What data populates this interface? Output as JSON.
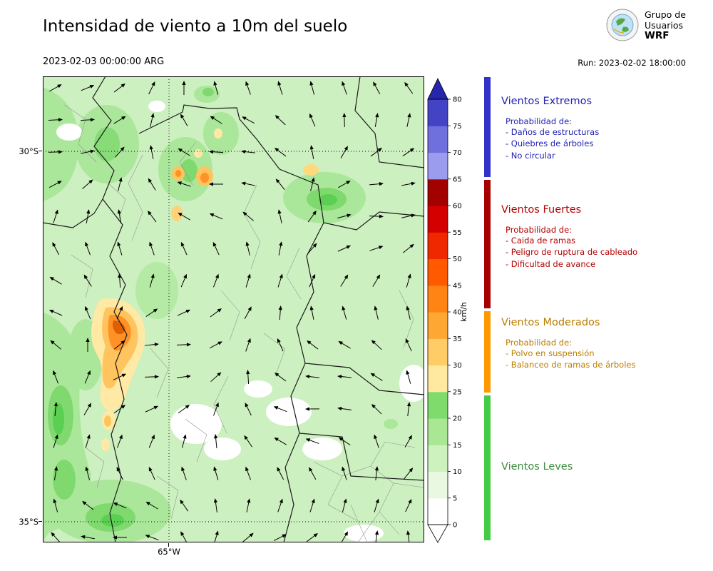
{
  "header": {
    "title": "Intensidad de viento a 10m del suelo",
    "valid_time": "2023-02-03 00:00:00 ARG",
    "run_label": "Run: 2023-02-02 18:00:00",
    "logo": {
      "line1": "Grupo de",
      "line2": "Usuarios",
      "line3": "WRF"
    }
  },
  "map": {
    "lat_labels": [
      "30°S",
      "35°S"
    ],
    "lon_label": "65°W",
    "wind_field": {
      "spacing": 45,
      "arrow_length": 20
    }
  },
  "colorbar": {
    "unit": "km/h",
    "ticks": [
      0,
      5,
      10,
      15,
      20,
      25,
      30,
      35,
      40,
      45,
      50,
      55,
      60,
      65,
      70,
      75,
      80
    ],
    "segment_colors": [
      "#ffffff",
      "#e9f9e1",
      "#cdf2bd",
      "#a9e794",
      "#7edb6c",
      "#ffe8a0",
      "#ffcc66",
      "#ffa733",
      "#ff8414",
      "#ff5a00",
      "#f02800",
      "#d40000",
      "#a30000",
      "#9c9cef",
      "#6f6fdd",
      "#4343c6"
    ],
    "over_color": "#2525ad",
    "under_color": "#ffffff"
  },
  "legend": {
    "categories": [
      {
        "name": "Vientos Extremos",
        "color": "#2222b2",
        "strip_color": "#3232c8",
        "prob_title": "Probabilidad de:",
        "items": [
          "- Daños de estructuras",
          "- Quiebres de árboles",
          "- No circular"
        ]
      },
      {
        "name": "Vientos Fuertes",
        "color": "#b30000",
        "strip_color": "#a80000",
        "prob_title": "Probabilidad de:",
        "items": [
          "- Caida de ramas",
          "- Peligro de ruptura de cableado",
          "- Dificultad de avance"
        ]
      },
      {
        "name": "Vientos Moderados",
        "color": "#bb7d00",
        "strip_color": "#ff9900",
        "prob_title": "Probabilidad de:",
        "items": [
          "- Polvo en suspensión",
          "- Balanceo de ramas de árboles"
        ]
      },
      {
        "name": "Vientos Leves",
        "color": "#3d8b3d",
        "strip_color": "#44cc44",
        "prob_title": "",
        "items": []
      }
    ]
  }
}
